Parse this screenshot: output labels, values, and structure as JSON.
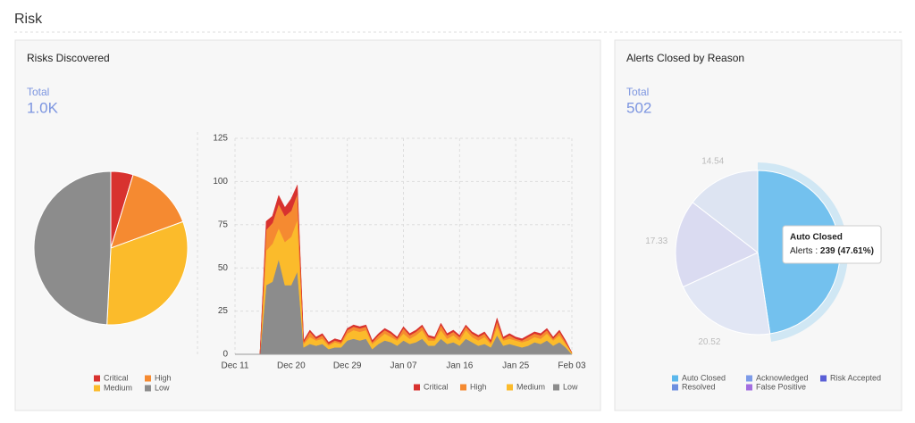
{
  "title": "Risk",
  "panels": [
    {
      "title": "Risks Discovered",
      "total_label": "Total",
      "total": "1.0K"
    },
    {
      "title": "Alerts Closed by Reason",
      "total_label": "Total",
      "total": "502"
    }
  ],
  "chart_data": [
    {
      "type": "pie",
      "categories": [
        "Critical",
        "High",
        "Medium",
        "Low"
      ],
      "values": [
        4.7,
        14.7,
        31.4,
        49.2
      ],
      "colors": [
        "#d8322f",
        "#f58a31",
        "#fbbb2b",
        "#8c8c8c"
      ]
    },
    {
      "type": "area",
      "stacked": true,
      "grid": true,
      "categories": [
        "Dec 11",
        null,
        null,
        null,
        null,
        null,
        null,
        null,
        null,
        "Dec 20",
        null,
        null,
        null,
        null,
        null,
        null,
        null,
        null,
        "Dec 29",
        null,
        null,
        null,
        null,
        null,
        null,
        null,
        null,
        "Jan 07",
        null,
        null,
        null,
        null,
        null,
        null,
        null,
        null,
        "Jan 16",
        null,
        null,
        null,
        null,
        null,
        null,
        null,
        null,
        "Jan 25",
        null,
        null,
        null,
        null,
        null,
        null,
        null,
        null,
        "Feb 03"
      ],
      "ylim": [
        0,
        125
      ],
      "yticks": [
        0,
        25,
        50,
        75,
        100,
        125
      ],
      "series": [
        {
          "name": "Critical",
          "color": "#d8322f",
          "values": [
            0,
            0,
            0,
            0,
            0,
            5,
            4,
            5,
            5,
            7,
            5,
            1,
            1,
            1,
            1,
            1,
            1,
            1,
            1,
            1,
            1,
            1,
            1,
            1,
            1,
            1,
            1,
            1,
            1,
            1,
            1,
            1,
            1,
            1,
            1,
            1,
            1,
            1,
            1,
            1,
            1,
            1,
            2,
            1,
            1,
            1,
            1,
            1,
            1,
            1,
            1,
            1,
            1,
            1,
            0
          ]
        },
        {
          "name": "High",
          "color": "#f58a31",
          "values": [
            0,
            0,
            0,
            0,
            0,
            12,
            12,
            14,
            15,
            15,
            15,
            1,
            3,
            1,
            2,
            1,
            1,
            1,
            2,
            2,
            2,
            2,
            1,
            2,
            2,
            2,
            1,
            3,
            2,
            2,
            2,
            2,
            1,
            3,
            2,
            2,
            2,
            2,
            2,
            2,
            2,
            1,
            3,
            1,
            2,
            1,
            1,
            2,
            2,
            2,
            2,
            1,
            2,
            1,
            0
          ]
        },
        {
          "name": "Medium",
          "color": "#fbbb2b",
          "values": [
            0,
            0,
            0,
            0,
            0,
            20,
            22,
            18,
            25,
            28,
            30,
            2,
            4,
            3,
            3,
            2,
            3,
            2,
            4,
            5,
            5,
            5,
            3,
            3,
            4,
            3,
            3,
            4,
            3,
            4,
            5,
            3,
            3,
            5,
            3,
            4,
            3,
            5,
            3,
            3,
            4,
            2,
            5,
            3,
            3,
            3,
            3,
            3,
            3,
            3,
            4,
            3,
            4,
            2,
            1
          ]
        },
        {
          "name": "Low",
          "color": "#8c8c8c",
          "values": [
            0,
            0,
            0,
            0,
            0,
            40,
            42,
            55,
            40,
            40,
            48,
            4,
            6,
            5,
            6,
            3,
            4,
            4,
            8,
            9,
            8,
            9,
            3,
            6,
            8,
            7,
            5,
            8,
            6,
            7,
            9,
            5,
            5,
            9,
            6,
            7,
            5,
            9,
            7,
            5,
            6,
            4,
            11,
            5,
            6,
            5,
            4,
            5,
            7,
            6,
            8,
            5,
            7,
            4,
            0
          ]
        }
      ]
    },
    {
      "type": "pie",
      "categories": [
        "Auto Closed",
        "Acknowledged",
        "Risk Accepted",
        "Resolved",
        "False Positive"
      ],
      "values": [
        47.61,
        20.52,
        17.33,
        14.54,
        0
      ],
      "colors": [
        "#5bb8ec",
        "#7d9be8",
        "#5a5fd6",
        "#6c8fe0",
        "#a36ee0"
      ],
      "highlight": 0,
      "tooltip": {
        "label": "Alerts :",
        "count": 239,
        "share": "(47.61%)"
      }
    }
  ]
}
